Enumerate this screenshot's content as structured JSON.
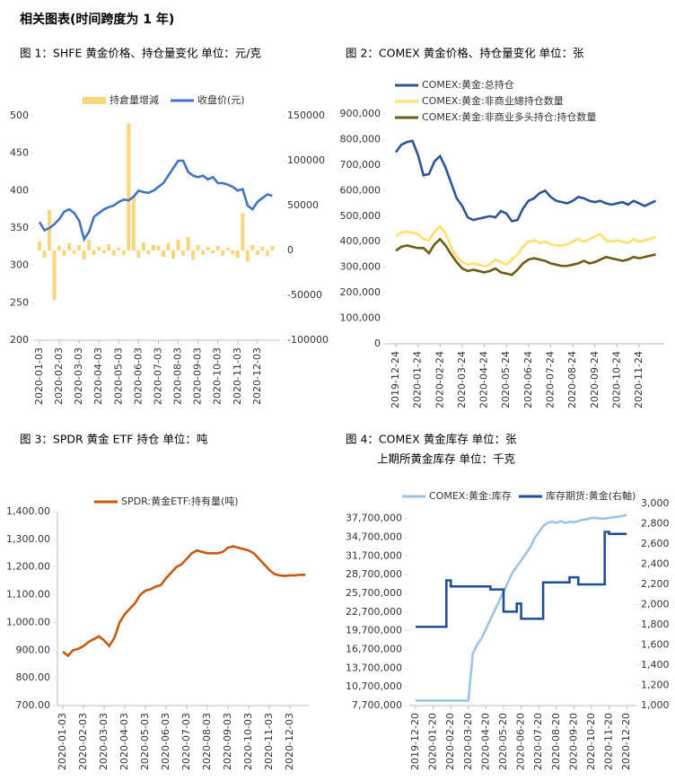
{
  "title": "相关图表(时间跨度为 1 年)",
  "chart_data": [
    {
      "type": "combo",
      "title": "图 1：SHFE 黄金价格、持仓量变化   单位：元/克",
      "categories": [
        "2020-01-03",
        null,
        null,
        null,
        "2020-02-03",
        null,
        null,
        null,
        "2020-03-03",
        null,
        null,
        null,
        "2020-04-03",
        null,
        null,
        null,
        "2020-05-03",
        null,
        null,
        null,
        "2020-06-03",
        null,
        null,
        null,
        "2020-07-03",
        null,
        null,
        null,
        "2020-08-03",
        null,
        null,
        null,
        "2020-09-03",
        null,
        null,
        null,
        "2020-10-03",
        null,
        null,
        null,
        "2020-11-03",
        null,
        null,
        null,
        "2020-12-03",
        null,
        null,
        null
      ],
      "ylim": [
        200,
        500
      ],
      "yticks": [
        200,
        250,
        300,
        350,
        400,
        450,
        500
      ],
      "y2lim": [
        -100000,
        150000
      ],
      "y2ticks": [
        -100000,
        -50000,
        0,
        50000,
        100000,
        150000
      ],
      "series": [
        {
          "name": "持倉量增減",
          "type": "bar",
          "axis": "y2",
          "color": "#f9d57e",
          "values": [
            10000,
            -8000,
            45000,
            -55000,
            5000,
            -6000,
            8000,
            -4000,
            6000,
            -10000,
            12000,
            -5000,
            4000,
            -3000,
            7000,
            -6000,
            3000,
            -5000,
            141667,
            60000,
            -8000,
            9000,
            -4000,
            6000,
            5000,
            -7000,
            8000,
            -9000,
            12000,
            -6000,
            15000,
            -10000,
            6000,
            -5000,
            4000,
            -3000,
            5000,
            -6000,
            3000,
            -4000,
            -8000,
            41667,
            -12000,
            6000,
            -5000,
            4000,
            -6000,
            5000
          ]
        },
        {
          "name": "收盘价(元)",
          "type": "line",
          "color": "#4472c4",
          "values": [
            358,
            347,
            350,
            355,
            362,
            372,
            375,
            370,
            360,
            335,
            345,
            365,
            370,
            375,
            378,
            380,
            385,
            388,
            387,
            392,
            400,
            398,
            397,
            400,
            405,
            410,
            420,
            430,
            440,
            440,
            425,
            420,
            418,
            420,
            415,
            418,
            410,
            410,
            408,
            405,
            400,
            402,
            380,
            375,
            385,
            390,
            395,
            393
          ]
        }
      ]
    },
    {
      "type": "line",
      "title": "图 2：COMEX 黄金价格、持仓量变化   单位：张",
      "categories": [
        "2019-12-24",
        null,
        null,
        null,
        "2020-01-24",
        null,
        null,
        null,
        "2020-02-24",
        null,
        null,
        null,
        "2020-03-24",
        null,
        null,
        null,
        "2020-04-24",
        null,
        null,
        null,
        "2020-05-24",
        null,
        null,
        null,
        "2020-06-24",
        null,
        null,
        null,
        "2020-07-24",
        null,
        null,
        null,
        "2020-08-24",
        null,
        null,
        null,
        "2020-09-24",
        null,
        null,
        null,
        "2020-10-24",
        null,
        null,
        null,
        "2020-11-24",
        null,
        null,
        null
      ],
      "ylim": [
        0,
        900000
      ],
      "yticks": [
        0,
        {
          "value": 100000,
          "label": "100,000"
        },
        {
          "value": 200000,
          "label": "200,000"
        },
        {
          "value": 300000,
          "label": "300,000"
        },
        {
          "value": 400000,
          "label": "400,000"
        },
        {
          "value": 500000,
          "label": "500,000"
        },
        {
          "value": 600000,
          "label": "600,000"
        },
        {
          "value": 700000,
          "label": "700,000"
        },
        {
          "value": 800000,
          "label": "800,000"
        },
        {
          "value": 900000,
          "label": "900,000"
        }
      ],
      "series": [
        {
          "name": "COMEX:黄金:总持仓",
          "color": "#2f5597",
          "values": [
            750000,
            780000,
            790000,
            795000,
            740000,
            660000,
            665000,
            715000,
            735000,
            690000,
            630000,
            570000,
            540000,
            495000,
            485000,
            490000,
            495000,
            500000,
            495000,
            520000,
            510000,
            480000,
            485000,
            530000,
            560000,
            570000,
            590000,
            600000,
            575000,
            560000,
            555000,
            550000,
            560000,
            575000,
            570000,
            560000,
            555000,
            560000,
            550000,
            545000,
            550000,
            555000,
            545000,
            560000,
            550000,
            540000,
            550000,
            560000
          ]
        },
        {
          "name": "COMEX:黄金:非商业總持仓数量",
          "color": "#ffdf6e",
          "values": [
            420000,
            435000,
            440000,
            435000,
            430000,
            410000,
            405000,
            440000,
            460000,
            430000,
            380000,
            340000,
            320000,
            310000,
            315000,
            310000,
            305000,
            310000,
            330000,
            320000,
            310000,
            330000,
            350000,
            380000,
            400000,
            405000,
            395000,
            400000,
            390000,
            385000,
            385000,
            390000,
            400000,
            410000,
            400000,
            410000,
            420000,
            430000,
            405000,
            400000,
            405000,
            400000,
            395000,
            410000,
            400000,
            405000,
            410000,
            420000
          ]
        },
        {
          "name": "COMEX:黄金:非商业多头持仓:持仓数量",
          "color": "#6e5b16",
          "values": [
            365000,
            380000,
            385000,
            380000,
            375000,
            375000,
            355000,
            390000,
            410000,
            385000,
            350000,
            320000,
            295000,
            285000,
            290000,
            285000,
            280000,
            285000,
            295000,
            280000,
            275000,
            270000,
            290000,
            315000,
            330000,
            335000,
            330000,
            325000,
            315000,
            310000,
            305000,
            305000,
            310000,
            315000,
            325000,
            315000,
            320000,
            330000,
            340000,
            335000,
            330000,
            325000,
            330000,
            340000,
            335000,
            340000,
            345000,
            350000
          ]
        }
      ]
    },
    {
      "type": "line",
      "title": "图 3：SPDR 黄金 ETF 持仓   单位：吨",
      "categories": [
        "2020-01-03",
        null,
        null,
        null,
        "2020-02-03",
        null,
        null,
        null,
        "2020-03-03",
        null,
        null,
        null,
        "2020-04-03",
        null,
        null,
        null,
        "2020-05-03",
        null,
        null,
        null,
        "2020-06-03",
        null,
        null,
        null,
        "2020-07-03",
        null,
        null,
        null,
        "2020-08-03",
        null,
        null,
        null,
        "2020-09-03",
        null,
        null,
        null,
        "2020-10-03",
        null,
        null,
        null,
        "2020-11-03",
        null,
        null,
        null,
        "2020-12-03",
        null,
        null,
        null
      ],
      "ylim": [
        700,
        1400
      ],
      "yticks": [
        {
          "value": 700,
          "label": "700.00"
        },
        {
          "value": 800,
          "label": "800.00"
        },
        {
          "value": 900,
          "label": "900.00"
        },
        {
          "value": 1000,
          "label": "1,000.00"
        },
        {
          "value": 1100,
          "label": "1,100.00"
        },
        {
          "value": 1200,
          "label": "1,200.00"
        },
        {
          "value": 1300,
          "label": "1,300.00"
        },
        {
          "value": 1400,
          "label": "1,400.00"
        }
      ],
      "series": [
        {
          "name": "SPDR:黄金ETF:持有量(吨)",
          "color": "#c55a11",
          "values": [
            895,
            880,
            900,
            905,
            915,
            930,
            940,
            950,
            935,
            915,
            945,
            1000,
            1030,
            1050,
            1070,
            1100,
            1115,
            1120,
            1130,
            1135,
            1160,
            1180,
            1200,
            1210,
            1230,
            1250,
            1260,
            1255,
            1250,
            1250,
            1250,
            1255,
            1270,
            1275,
            1270,
            1265,
            1260,
            1250,
            1230,
            1210,
            1190,
            1175,
            1170,
            1168,
            1170,
            1170,
            1172,
            1172
          ]
        }
      ]
    },
    {
      "type": "line",
      "title": "图 4：COMEX 黄金库存   单位：张",
      "subtitle": "上期所黄金库存   单位：千克",
      "categories": [
        "2019-12-20",
        null,
        null,
        null,
        "2020-01-20",
        null,
        null,
        null,
        "2020-02-20",
        null,
        null,
        null,
        "2020-03-20",
        null,
        null,
        null,
        "2020-04-20",
        null,
        null,
        null,
        "2020-05-20",
        null,
        null,
        null,
        "2020-06-20",
        null,
        null,
        null,
        "2020-07-20",
        null,
        null,
        null,
        "2020-08-20",
        null,
        null,
        null,
        "2020-09-20",
        null,
        null,
        null,
        "2020-10-20",
        null,
        null,
        null,
        "2020-11-20",
        null,
        null,
        null,
        "2020-12-20"
      ],
      "ylim": [
        7700000,
        40100000
      ],
      "yticks": [
        {
          "value": 7700000,
          "label": "7,700,000"
        },
        {
          "value": 10700000,
          "label": "10,700,000"
        },
        {
          "value": 13700000,
          "label": "13,700,000"
        },
        {
          "value": 16700000,
          "label": "16,700,000"
        },
        {
          "value": 19700000,
          "label": "19,700,000"
        },
        {
          "value": 22700000,
          "label": "22,700,000"
        },
        {
          "value": 25700000,
          "label": "25,700,000"
        },
        {
          "value": 28700000,
          "label": "28,700,000"
        },
        {
          "value": 31700000,
          "label": "31,700,000"
        },
        {
          "value": 34700000,
          "label": "34,700,000"
        },
        {
          "value": 37700000,
          "label": "37,700,000"
        }
      ],
      "y2lim": [
        1000,
        3000
      ],
      "y2ticks": [
        {
          "value": 1000,
          "label": "1,000"
        },
        {
          "value": 1200,
          "label": "1,200"
        },
        {
          "value": 1400,
          "label": "1,400"
        },
        {
          "value": 1600,
          "label": "1,600"
        },
        {
          "value": 1800,
          "label": "1,800"
        },
        {
          "value": 2000,
          "label": "2,000"
        },
        {
          "value": 2200,
          "label": "2,200"
        },
        {
          "value": 2400,
          "label": "2,400"
        },
        {
          "value": 2600,
          "label": "2,600"
        },
        {
          "value": 2800,
          "label": "2,800"
        },
        {
          "value": 3000,
          "label": "3,000"
        }
      ],
      "series": [
        {
          "name": "COMEX:黄金:库存",
          "color": "#9dc3e6",
          "values": [
            8500000,
            8500000,
            8500000,
            8500000,
            8500000,
            8500000,
            8500000,
            8500000,
            8500000,
            8500000,
            8500000,
            8500000,
            8500000,
            16000000,
            17500000,
            18500000,
            20000000,
            21500000,
            23000000,
            24500000,
            26000000,
            27500000,
            29000000,
            30000000,
            31000000,
            32000000,
            33000000,
            34500000,
            35500000,
            36500000,
            37000000,
            37200000,
            37000000,
            37300000,
            37000000,
            37200000,
            37100000,
            37300000,
            37500000,
            37600000,
            37800000,
            37800000,
            37700000,
            37700000,
            37800000,
            37900000,
            38000000,
            38100000,
            38300000
          ]
        },
        {
          "name": "库存期货:黄金(右軸)",
          "axis": "y2",
          "step": true,
          "color": "#1f4e99",
          "values": [
            1780,
            1780,
            1780,
            1780,
            1780,
            1780,
            1780,
            2240,
            2180,
            2180,
            2180,
            2180,
            2180,
            2180,
            2180,
            2180,
            2180,
            2150,
            2150,
            2150,
            1930,
            1930,
            1930,
            2010,
            1860,
            1860,
            1860,
            1860,
            1860,
            2220,
            2220,
            2220,
            2220,
            2220,
            2220,
            2270,
            2270,
            2200,
            2200,
            2200,
            2200,
            2200,
            2200,
            2720,
            2700,
            2700,
            2700,
            2700,
            2700
          ]
        }
      ]
    }
  ]
}
